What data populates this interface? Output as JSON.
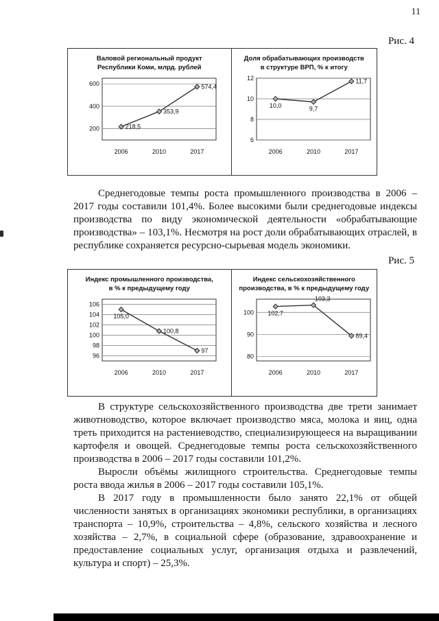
{
  "page": {
    "number": "11"
  },
  "figures": [
    {
      "label": "Рис. 4",
      "chart_ids": [
        0,
        1
      ]
    },
    {
      "label": "Рис. 5",
      "chart_ids": [
        2,
        3
      ]
    }
  ],
  "chart_data": [
    {
      "id": "grp",
      "type": "line",
      "title": "Валовой региональный продукт Республики Коми, млрд. рублей",
      "title_lines": [
        "Валовой региональный продукт",
        "Республики Коми, млрд. рублей"
      ],
      "categories": [
        "2006",
        "2010",
        "2017"
      ],
      "values": [
        218.5,
        353.9,
        574.4
      ],
      "point_labels": [
        "218,5",
        "353,9",
        "574,4"
      ],
      "label_pos": [
        "right",
        "right",
        "right"
      ],
      "ylim": [
        100,
        650
      ],
      "yticks": [
        200,
        400,
        600
      ],
      "ytick_labels": [
        "200",
        "400",
        "600"
      ],
      "grid": true,
      "legend": "none",
      "marker": "diamond"
    },
    {
      "id": "manufacturing-share",
      "type": "line",
      "title": "Доля обрабатывающих производств в структуре ВРП, % к итогу",
      "title_lines": [
        "Доля обрабатывающих производств",
        "в структуре ВРП, % к итогу"
      ],
      "categories": [
        "2006",
        "2010",
        "2017"
      ],
      "values": [
        10.0,
        9.7,
        11.7
      ],
      "point_labels": [
        "10,0",
        "9,7",
        "11,7"
      ],
      "label_pos": [
        "below",
        "below",
        "right"
      ],
      "ylim": [
        6,
        12
      ],
      "yticks": [
        6,
        8,
        10,
        12
      ],
      "ytick_labels": [
        "6",
        "8",
        "10",
        "12"
      ],
      "grid": true,
      "legend": "none",
      "marker": "diamond"
    },
    {
      "id": "industrial-production-index",
      "type": "line",
      "title": "Индекс промышленного производства, в % к предыдущему году",
      "title_lines": [
        "Индекс промышленного производства,",
        "в % к предыдущему году"
      ],
      "categories": [
        "2006",
        "2010",
        "2017"
      ],
      "values": [
        105.0,
        100.8,
        97
      ],
      "point_labels": [
        "105,0",
        "100,8",
        "97"
      ],
      "label_pos": [
        "below",
        "right",
        "right"
      ],
      "ylim": [
        95,
        107
      ],
      "yticks": [
        96,
        98,
        100,
        102,
        104,
        106
      ],
      "ytick_labels": [
        "96",
        "98",
        "100",
        "102",
        "104",
        "106"
      ],
      "grid": true,
      "legend": "none",
      "marker": "diamond"
    },
    {
      "id": "agricultural-production-index",
      "type": "line",
      "title": "Индекс сельскохозяйственного производства, в % к предыдущему году",
      "title_lines": [
        "Индекс сельскохозяйственного",
        "производства, в % к предыдущему году"
      ],
      "categories": [
        "2006",
        "2010",
        "2017"
      ],
      "values": [
        102.7,
        103.3,
        89.4
      ],
      "point_labels": [
        "102,7",
        "103,3",
        "89,4"
      ],
      "label_pos": [
        "below",
        "above",
        "right"
      ],
      "ylim": [
        78,
        106
      ],
      "yticks": [
        80,
        90,
        100
      ],
      "ytick_labels": [
        "80",
        "90",
        "100"
      ],
      "grid": true,
      "legend": "none",
      "marker": "diamond"
    }
  ],
  "body_text": {
    "paragraphs": [
      "Среднегодовые темпы роста промышленного производства в 2006 – 2017 годы составили 101,4%. Более высокими были среднегодовые индексы производства по виду экономической деятельности «обрабатывающие производства» – 103,1%. Несмотря на рост доли обрабатывающих отраслей, в республике сохраняется ресурсно-сырьевая модель экономики.",
      "В структуре сельскохозяйственного производства две трети занимает животноводство, которое включает производство мяса, молока и яиц, одна треть приходится на растениеводство, специализирующееся на выращивании картофеля и овощей. Среднегодовые темпы роста сельскохозяйственного производства в 2006 – 2017 годы составили 101,2%.",
      "Выросли объёмы жилищного строительства. Среднегодовые темпы роста ввода жилья в 2006 – 2017 годы составили 105,1%.",
      "В 2017 году в промышленности было занято 22,1% от общей численности занятых в организациях экономики республики, в организациях транспорта – 10,9%, строительства – 4,8%, сельского хозяйства и лесного хозяйства – 2,7%, в социальной сфере (образование, здравоохранение и предоставление социальных услуг, организация отдыха и развлечений, культура и спорт) – 25,3%."
    ]
  }
}
